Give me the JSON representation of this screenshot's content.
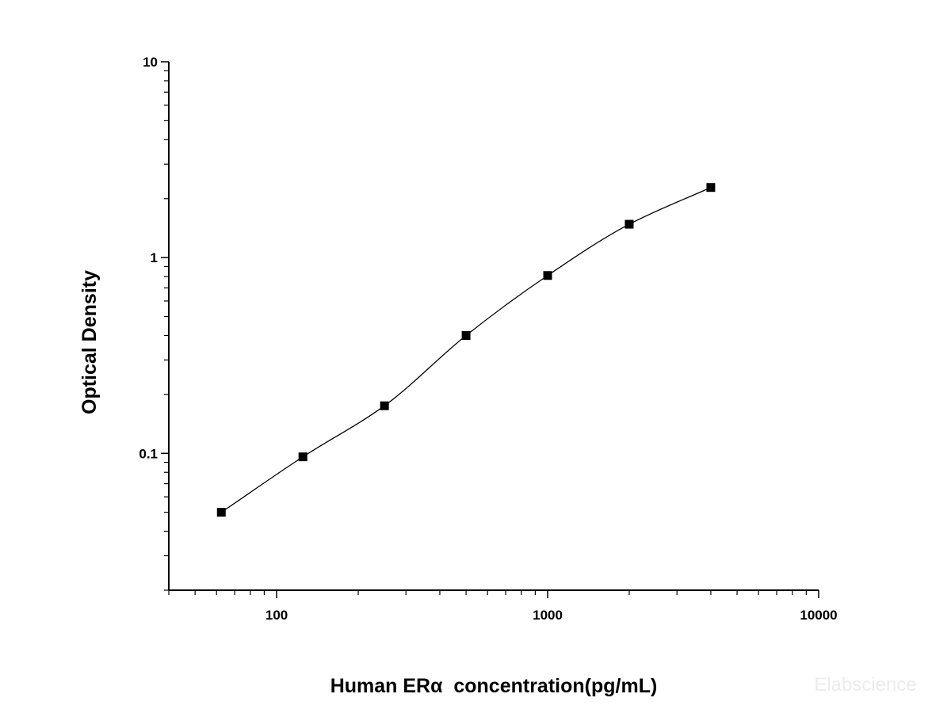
{
  "chart_data": {
    "type": "scatter",
    "xlabel": "Human ERα  concentration(pg/mL)",
    "ylabel": "Optical Density",
    "x_scale": "log",
    "y_scale": "log",
    "xlim": [
      40,
      10000
    ],
    "ylim": [
      0.02,
      10
    ],
    "x_ticks": [
      100,
      1000,
      10000
    ],
    "x_tick_labels": [
      "100",
      "1000",
      "10000"
    ],
    "y_ticks": [
      0.1,
      1,
      10
    ],
    "y_tick_labels": [
      "0.1",
      "1",
      "10"
    ],
    "grid": false,
    "series": [
      {
        "points": [
          {
            "x": 62.5,
            "y": 0.05
          },
          {
            "x": 125,
            "y": 0.096
          },
          {
            "x": 250,
            "y": 0.175
          },
          {
            "x": 500,
            "y": 0.4
          },
          {
            "x": 1000,
            "y": 0.81
          },
          {
            "x": 2000,
            "y": 1.48
          },
          {
            "x": 4000,
            "y": 2.28
          }
        ],
        "fit_curve": true,
        "marker": "square",
        "color": "#000000"
      }
    ]
  },
  "watermark": "Elabscience"
}
